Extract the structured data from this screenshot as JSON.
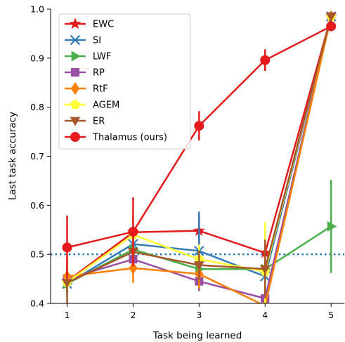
{
  "chart_data": {
    "type": "line",
    "xlabel": "Task being learned",
    "ylabel": "Last task accuracy",
    "x": [
      1,
      2,
      3,
      4,
      5
    ],
    "xlim": [
      0.75,
      5.2
    ],
    "ylim": [
      0.4,
      1.0
    ],
    "xticks": [
      "1",
      "2",
      "3",
      "4",
      "5"
    ],
    "yticks": [
      "0.4",
      "0.5",
      "0.6",
      "0.7",
      "0.8",
      "0.9",
      "1.0"
    ],
    "reference_line": {
      "y": 0.5,
      "style": "dotted",
      "color": "#1f77b4"
    },
    "legend_position": "top-left",
    "series": [
      {
        "name": "EWC",
        "color": "#e41a1c",
        "marker": "star",
        "values": [
          0.445,
          0.545,
          0.548,
          0.503,
          0.985
        ],
        "err": [
          0.02,
          0.03,
          0.03,
          0.03,
          0.01
        ]
      },
      {
        "name": "SI",
        "color": "#377eb8",
        "marker": "x",
        "values": [
          0.44,
          0.521,
          0.507,
          0.455,
          0.985
        ],
        "err": [
          0.02,
          0.03,
          0.08,
          0.03,
          0.01
        ]
      },
      {
        "name": "LWF",
        "color": "#4daf4a",
        "marker": "triangle-right",
        "values": [
          0.44,
          0.51,
          0.47,
          0.47,
          0.557
        ],
        "err": [
          0.02,
          0.03,
          0.02,
          0.02,
          0.095
        ]
      },
      {
        "name": "RP",
        "color": "#984ea3",
        "marker": "square",
        "values": [
          0.45,
          0.49,
          0.445,
          0.41,
          0.985
        ],
        "err": [
          0.02,
          0.03,
          0.02,
          0.02,
          0.01
        ]
      },
      {
        "name": "RtF",
        "color": "#ff7f00",
        "marker": "diamond",
        "values": [
          0.455,
          0.472,
          0.46,
          0.395,
          0.985
        ],
        "err": [
          0.02,
          0.03,
          0.03,
          0.03,
          0.01
        ]
      },
      {
        "name": "AGEM",
        "color": "#ffff33",
        "marker": "pentagon",
        "values": [
          0.443,
          0.54,
          0.49,
          0.465,
          0.985
        ],
        "err": [
          0.02,
          0.03,
          0.03,
          0.1,
          0.01
        ]
      },
      {
        "name": "ER",
        "color": "#a65628",
        "marker": "triangle-down",
        "values": [
          0.442,
          0.505,
          0.478,
          0.47,
          0.985
        ],
        "err": [
          0.05,
          0.03,
          0.03,
          0.06,
          0.01
        ]
      },
      {
        "name": "Thalamus (ours)",
        "color": "#e41a1c",
        "marker": "circle",
        "values": [
          0.514,
          0.546,
          0.762,
          0.896,
          0.965
        ],
        "err": [
          0.065,
          0.07,
          0.03,
          0.022,
          0.01
        ]
      }
    ]
  }
}
